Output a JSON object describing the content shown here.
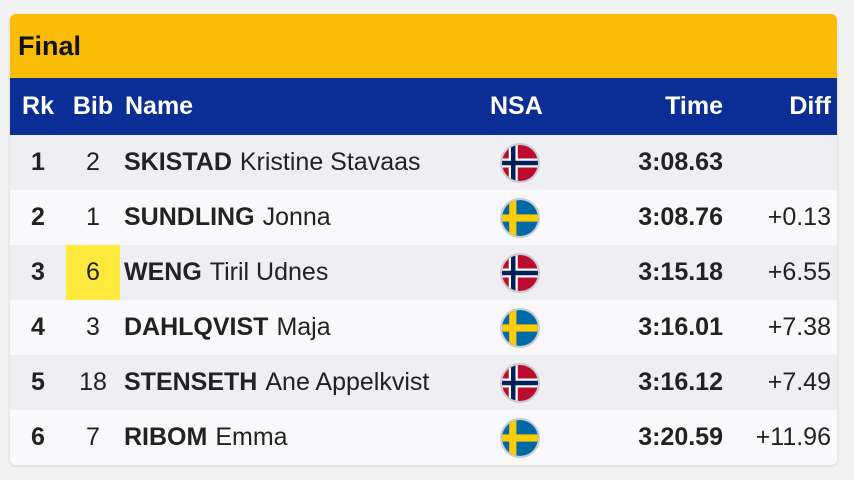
{
  "title": "Final",
  "columns": {
    "rk": "Rk",
    "bib": "Bib",
    "name": "Name",
    "nsa": "NSA",
    "time": "Time",
    "diff": "Diff"
  },
  "rows": [
    {
      "rk": "1",
      "bib": "2",
      "surname": "SKISTAD",
      "firstname": "Kristine Stavaas",
      "nsa": "norway-flag-icon",
      "time": "3:08.63",
      "diff": "",
      "bib_highlight": false
    },
    {
      "rk": "2",
      "bib": "1",
      "surname": "SUNDLING",
      "firstname": "Jonna",
      "nsa": "sweden-flag-icon",
      "time": "3:08.76",
      "diff": "+0.13",
      "bib_highlight": false
    },
    {
      "rk": "3",
      "bib": "6",
      "surname": "WENG",
      "firstname": "Tiril Udnes",
      "nsa": "norway-flag-icon",
      "time": "3:15.18",
      "diff": "+6.55",
      "bib_highlight": true
    },
    {
      "rk": "4",
      "bib": "3",
      "surname": "DAHLQVIST",
      "firstname": "Maja",
      "nsa": "sweden-flag-icon",
      "time": "3:16.01",
      "diff": "+7.38",
      "bib_highlight": false
    },
    {
      "rk": "5",
      "bib": "18",
      "surname": "STENSETH",
      "firstname": "Ane Appelkvist",
      "nsa": "norway-flag-icon",
      "time": "3:16.12",
      "diff": "+7.49",
      "bib_highlight": false
    },
    {
      "rk": "6",
      "bib": "7",
      "surname": "RIBOM",
      "firstname": "Emma",
      "nsa": "sweden-flag-icon",
      "time": "3:20.59",
      "diff": "+11.96",
      "bib_highlight": false
    }
  ],
  "colors": {
    "title_bar": "#fbbc05",
    "header": "#0b2d96",
    "bib_highlight": "#ffe93d"
  }
}
